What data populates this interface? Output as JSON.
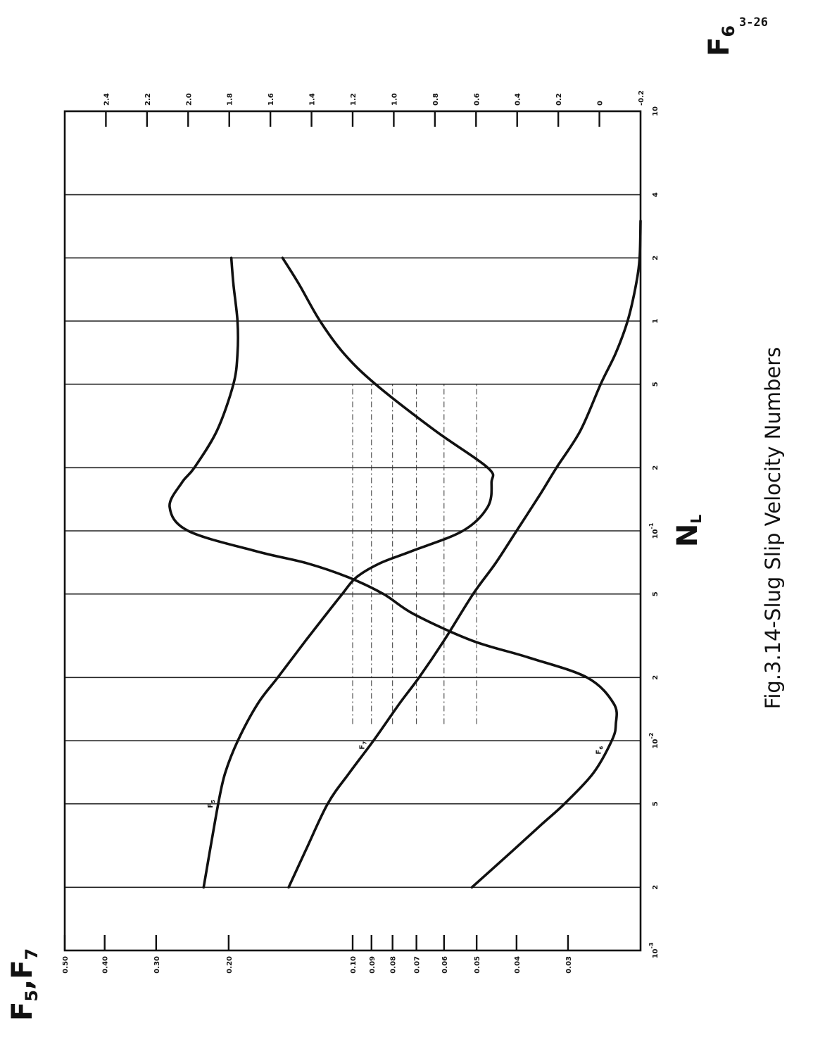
{
  "page_number": "3-26",
  "chart_data": {
    "type": "line",
    "title": "Fig.3.14-Slug Slip Velocity Numbers",
    "xlabel": "N",
    "xlabel_subscript": "L",
    "x_scale": "log",
    "xlim": [
      0.001,
      10
    ],
    "x_ticks": [
      {
        "value": 0.001,
        "base": "10",
        "exp": "-3"
      },
      {
        "value": 0.002,
        "base": "2",
        "exp": ""
      },
      {
        "value": 0.005,
        "base": "5",
        "exp": ""
      },
      {
        "value": 0.01,
        "base": "10",
        "exp": "-2"
      },
      {
        "value": 0.02,
        "base": "2",
        "exp": ""
      },
      {
        "value": 0.05,
        "base": "5",
        "exp": ""
      },
      {
        "value": 0.1,
        "base": "10",
        "exp": "-1"
      },
      {
        "value": 0.2,
        "base": "2",
        "exp": ""
      },
      {
        "value": 0.5,
        "base": "5",
        "exp": ""
      },
      {
        "value": 1,
        "base": "1",
        "exp": ""
      },
      {
        "value": 2,
        "base": "2",
        "exp": ""
      },
      {
        "value": 4,
        "base": "4",
        "exp": ""
      },
      {
        "value": 10,
        "base": "10",
        "exp": ""
      }
    ],
    "left_axis": {
      "label": "F",
      "label_subscripts": [
        "5",
        "7"
      ],
      "scale": "log",
      "ylim": [
        0.02,
        0.5
      ],
      "ticks": [
        0.5,
        0.4,
        0.3,
        0.2,
        0.1,
        0.09,
        0.08,
        0.07,
        0.06,
        0.05,
        0.04,
        0.03
      ],
      "tick_labels": [
        "0.50",
        "0.40",
        "0.30",
        "0.20",
        "0.10",
        "0.09",
        "0.08",
        "0.07",
        "0.06",
        "0.05",
        "0.04",
        "0.03"
      ]
    },
    "right_axis": {
      "label": "F",
      "label_subscript": "6",
      "scale": "linear",
      "ylim": [
        -0.2,
        2.6
      ],
      "ticks": [
        2.4,
        2.2,
        2.0,
        1.8,
        1.6,
        1.4,
        1.2,
        1.0,
        0.8,
        0.6,
        0.4,
        0.2,
        0,
        -0.2
      ],
      "tick_labels": [
        "2.4",
        "2.2",
        "2.0",
        "1.8",
        "1.6",
        "1.4",
        "1.2",
        "1.0",
        "0.8",
        "0.6",
        "0.4",
        "0.2",
        "0",
        "-0.2"
      ]
    },
    "grid": true,
    "series": [
      {
        "name": "F5",
        "label_main": "F",
        "label_sub": "5",
        "axis": "left",
        "x": [
          0.002,
          0.003,
          0.005,
          0.007,
          0.01,
          0.015,
          0.02,
          0.03,
          0.04,
          0.05,
          0.06,
          0.07,
          0.08,
          0.1,
          0.13,
          0.17,
          0.2,
          0.3,
          0.5,
          0.7,
          1,
          1.5,
          2
        ],
        "y": [
          0.23,
          0.222,
          0.212,
          0.204,
          0.19,
          0.17,
          0.152,
          0.13,
          0.116,
          0.106,
          0.098,
          0.086,
          0.072,
          0.054,
          0.047,
          0.046,
          0.047,
          0.063,
          0.088,
          0.105,
          0.12,
          0.135,
          0.148
        ]
      },
      {
        "name": "F6",
        "label_main": "F",
        "label_sub": "6",
        "axis": "right",
        "x": [
          0.002,
          0.003,
          0.004,
          0.005,
          0.007,
          0.01,
          0.012,
          0.015,
          0.02,
          0.025,
          0.03,
          0.04,
          0.05,
          0.06,
          0.07,
          0.08,
          0.1,
          0.13,
          0.17,
          0.2,
          0.3,
          0.5,
          0.7,
          1,
          1.5,
          2
        ],
        "y": [
          0.62,
          0.42,
          0.28,
          0.17,
          0.03,
          -0.06,
          -0.08,
          -0.07,
          0.06,
          0.35,
          0.62,
          0.9,
          1.05,
          1.22,
          1.42,
          1.67,
          2.0,
          2.09,
          2.03,
          1.97,
          1.86,
          1.78,
          1.76,
          1.76,
          1.78,
          1.79
        ]
      },
      {
        "name": "F7",
        "label_main": "F",
        "label_sub": "7",
        "axis": "left",
        "x": [
          0.002,
          0.003,
          0.005,
          0.007,
          0.01,
          0.015,
          0.02,
          0.03,
          0.05,
          0.07,
          0.1,
          0.15,
          0.2,
          0.3,
          0.5,
          0.7,
          1,
          1.5,
          2,
          3
        ],
        "y": [
          0.143,
          0.13,
          0.115,
          0.102,
          0.089,
          0.077,
          0.069,
          0.06,
          0.051,
          0.045,
          0.04,
          0.035,
          0.032,
          0.028,
          0.025,
          0.023,
          0.0215,
          0.0205,
          0.0201,
          0.02
        ]
      }
    ]
  }
}
